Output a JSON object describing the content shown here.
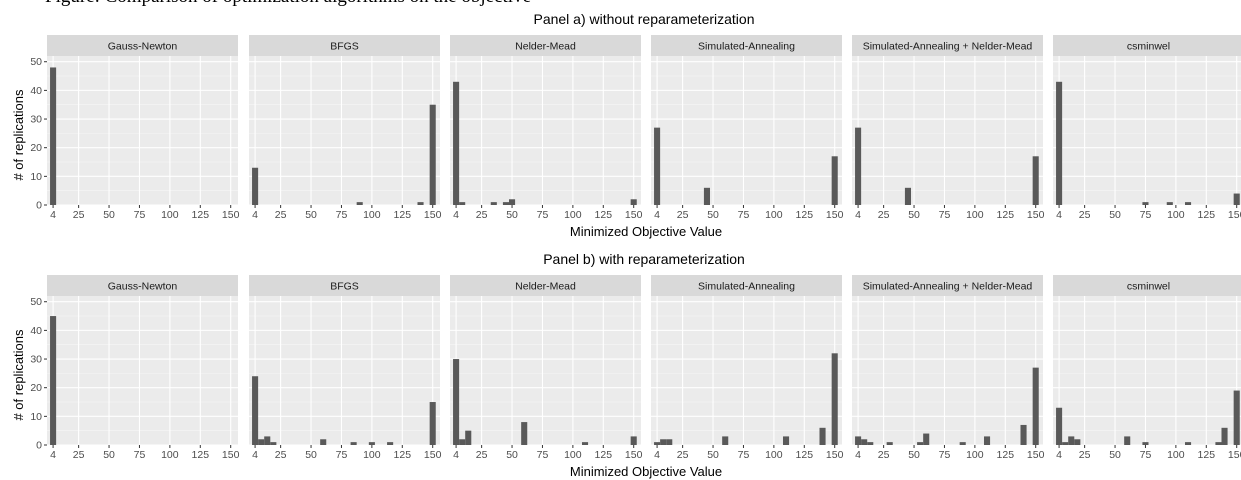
{
  "cropped_caption": "Figure: Comparison of optimization algorithms on the objective",
  "chart_data": [
    {
      "type": "bar",
      "title": "Panel a) without reparameterization",
      "xlabel": "Minimized Objective Value",
      "ylabel": "# of replications",
      "ylim": [
        0,
        52
      ],
      "yticks": [
        0,
        10,
        20,
        30,
        40,
        50
      ],
      "xlim": [
        -1,
        156
      ],
      "xticks": [
        4,
        25,
        50,
        75,
        100,
        125,
        150
      ],
      "bin_width": 5,
      "bar_color": "#595959",
      "panel_background": "#ebebeb",
      "strip_background": "#d9d9d9",
      "grid": true,
      "facets": [
        {
          "name": "Gauss-Newton",
          "bars": [
            {
              "x": 4,
              "y": 48
            }
          ]
        },
        {
          "name": "BFGS",
          "bars": [
            {
              "x": 4,
              "y": 13
            },
            {
              "x": 90,
              "y": 1
            },
            {
              "x": 140,
              "y": 1
            },
            {
              "x": 150,
              "y": 35
            }
          ]
        },
        {
          "name": "Nelder-Mead",
          "bars": [
            {
              "x": 4,
              "y": 43
            },
            {
              "x": 9,
              "y": 1
            },
            {
              "x": 35,
              "y": 1
            },
            {
              "x": 45,
              "y": 1
            },
            {
              "x": 50,
              "y": 2
            },
            {
              "x": 150,
              "y": 2
            }
          ]
        },
        {
          "name": "Simulated-Annealing",
          "bars": [
            {
              "x": 4,
              "y": 27
            },
            {
              "x": 45,
              "y": 6
            },
            {
              "x": 150,
              "y": 17
            }
          ]
        },
        {
          "name": "Simulated-Annealing + Nelder-Mead",
          "bars": [
            {
              "x": 4,
              "y": 27
            },
            {
              "x": 45,
              "y": 6
            },
            {
              "x": 150,
              "y": 17
            }
          ]
        },
        {
          "name": "csminwel",
          "bars": [
            {
              "x": 4,
              "y": 43
            },
            {
              "x": 75,
              "y": 1
            },
            {
              "x": 95,
              "y": 1
            },
            {
              "x": 110,
              "y": 1
            },
            {
              "x": 150,
              "y": 4
            }
          ]
        }
      ]
    },
    {
      "type": "bar",
      "title": "Panel b) with reparameterization",
      "xlabel": "Minimized Objective Value",
      "ylabel": "# of replications",
      "ylim": [
        0,
        52
      ],
      "yticks": [
        0,
        10,
        20,
        30,
        40,
        50
      ],
      "xlim": [
        -1,
        156
      ],
      "xticks": [
        4,
        25,
        50,
        75,
        100,
        125,
        150
      ],
      "bin_width": 5,
      "bar_color": "#595959",
      "panel_background": "#ebebeb",
      "strip_background": "#d9d9d9",
      "grid": true,
      "facets": [
        {
          "name": "Gauss-Newton",
          "bars": [
            {
              "x": 4,
              "y": 45
            }
          ]
        },
        {
          "name": "BFGS",
          "bars": [
            {
              "x": 4,
              "y": 24
            },
            {
              "x": 9,
              "y": 2
            },
            {
              "x": 14,
              "y": 3
            },
            {
              "x": 19,
              "y": 1
            },
            {
              "x": 60,
              "y": 2
            },
            {
              "x": 85,
              "y": 1
            },
            {
              "x": 100,
              "y": 1
            },
            {
              "x": 115,
              "y": 1
            },
            {
              "x": 150,
              "y": 15
            }
          ]
        },
        {
          "name": "Nelder-Mead",
          "bars": [
            {
              "x": 4,
              "y": 30
            },
            {
              "x": 9,
              "y": 2
            },
            {
              "x": 14,
              "y": 5
            },
            {
              "x": 60,
              "y": 8
            },
            {
              "x": 110,
              "y": 1
            },
            {
              "x": 150,
              "y": 3
            }
          ]
        },
        {
          "name": "Simulated-Annealing",
          "bars": [
            {
              "x": 4,
              "y": 1
            },
            {
              "x": 9,
              "y": 2
            },
            {
              "x": 14,
              "y": 2
            },
            {
              "x": 60,
              "y": 3
            },
            {
              "x": 110,
              "y": 3
            },
            {
              "x": 140,
              "y": 6
            },
            {
              "x": 150,
              "y": 32
            }
          ]
        },
        {
          "name": "Simulated-Annealing + Nelder-Mead",
          "bars": [
            {
              "x": 4,
              "y": 3
            },
            {
              "x": 9,
              "y": 2
            },
            {
              "x": 14,
              "y": 1
            },
            {
              "x": 30,
              "y": 1
            },
            {
              "x": 55,
              "y": 1
            },
            {
              "x": 60,
              "y": 4
            },
            {
              "x": 90,
              "y": 1
            },
            {
              "x": 110,
              "y": 3
            },
            {
              "x": 140,
              "y": 7
            },
            {
              "x": 150,
              "y": 27
            }
          ]
        },
        {
          "name": "csminwel",
          "bars": [
            {
              "x": 4,
              "y": 13
            },
            {
              "x": 9,
              "y": 1
            },
            {
              "x": 14,
              "y": 3
            },
            {
              "x": 19,
              "y": 2
            },
            {
              "x": 60,
              "y": 3
            },
            {
              "x": 75,
              "y": 1
            },
            {
              "x": 110,
              "y": 1
            },
            {
              "x": 135,
              "y": 1
            },
            {
              "x": 140,
              "y": 6
            },
            {
              "x": 150,
              "y": 19
            }
          ]
        }
      ]
    }
  ]
}
